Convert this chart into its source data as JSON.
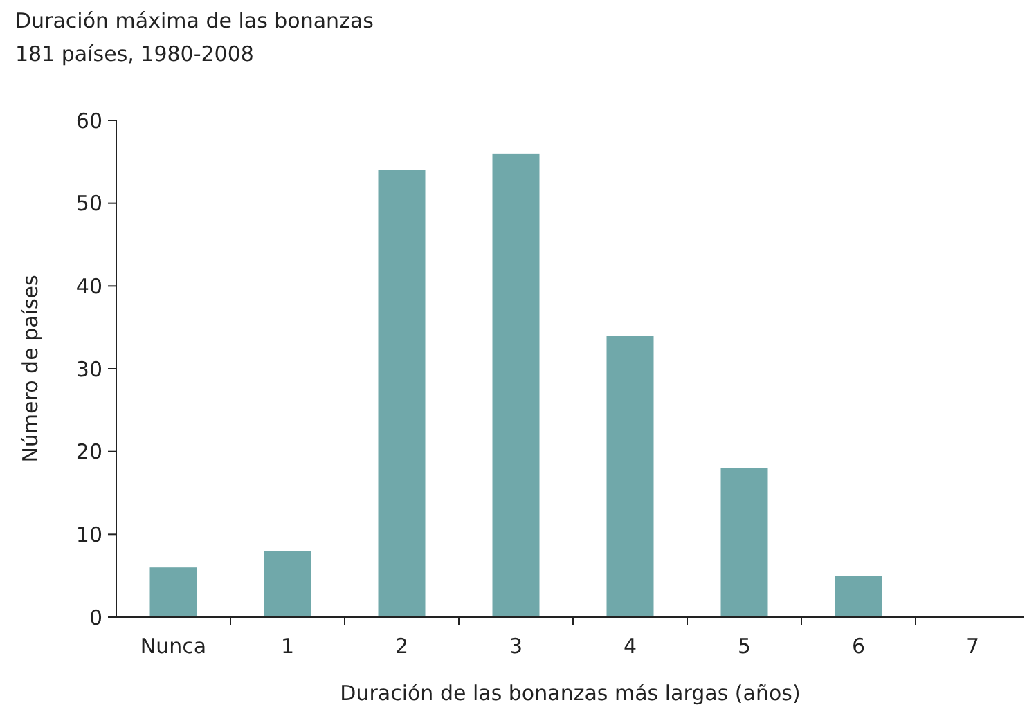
{
  "chart_data": {
    "type": "bar",
    "title": "Duración máxima de las bonanzas",
    "subtitle": "181 países, 1980-2008",
    "xlabel": "Duración de las bonanzas más largas (años)",
    "ylabel": "Número de países",
    "categories": [
      "Nunca",
      "1",
      "2",
      "3",
      "4",
      "5",
      "6",
      "7"
    ],
    "values": [
      6,
      8,
      54,
      56,
      34,
      18,
      5,
      0
    ],
    "color": "#70a8aa",
    "ylim": [
      0,
      60
    ],
    "yticks": [
      0,
      10,
      20,
      30,
      40,
      50,
      60
    ],
    "grid": false
  }
}
